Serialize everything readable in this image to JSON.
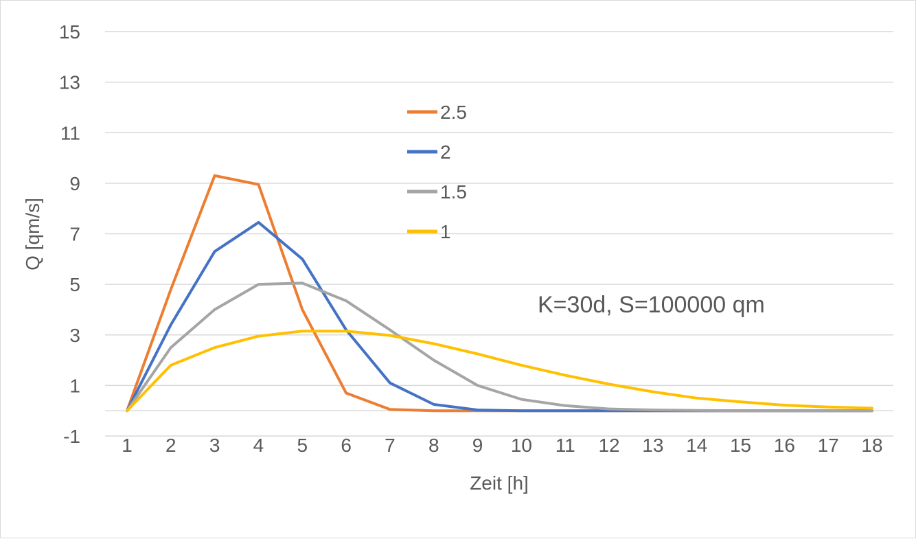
{
  "chart_data": {
    "type": "line",
    "title": "",
    "xlabel": "Zeit [h]",
    "ylabel": "Q [qm/s]",
    "annotation": "K=30d, S=100000 qm",
    "ylim": [
      -1,
      15
    ],
    "yticks": [
      -1,
      1,
      3,
      5,
      7,
      9,
      11,
      13,
      15
    ],
    "x": [
      1,
      2,
      3,
      4,
      5,
      6,
      7,
      8,
      9,
      10,
      11,
      12,
      13,
      14,
      15,
      16,
      17,
      18
    ],
    "grid": true,
    "legend_position": "center-top",
    "series": [
      {
        "name": "2.5",
        "color": "#ED7D31",
        "values": [
          0,
          4.8,
          9.3,
          8.95,
          4.0,
          0.7,
          0.05,
          0.0,
          0.0,
          0.0,
          0.0,
          0.0,
          0.0,
          0.0,
          0.0,
          0.0,
          0.0,
          0.0
        ]
      },
      {
        "name": "2",
        "color": "#4472C4",
        "values": [
          0,
          3.4,
          6.3,
          7.45,
          6.0,
          3.2,
          1.1,
          0.25,
          0.03,
          0.0,
          0.0,
          0.0,
          0.0,
          0.0,
          0.0,
          0.0,
          0.0,
          0.0
        ]
      },
      {
        "name": "1.5",
        "color": "#A5A5A5",
        "values": [
          0,
          2.5,
          4.0,
          5.0,
          5.05,
          4.35,
          3.2,
          2.0,
          1.0,
          0.45,
          0.2,
          0.07,
          0.03,
          0.01,
          0.0,
          0.0,
          0.0,
          0.0
        ]
      },
      {
        "name": "1",
        "color": "#FFC000",
        "values": [
          0,
          1.8,
          2.5,
          2.95,
          3.15,
          3.15,
          2.98,
          2.65,
          2.25,
          1.8,
          1.4,
          1.05,
          0.75,
          0.5,
          0.35,
          0.22,
          0.15,
          0.1
        ]
      }
    ]
  }
}
